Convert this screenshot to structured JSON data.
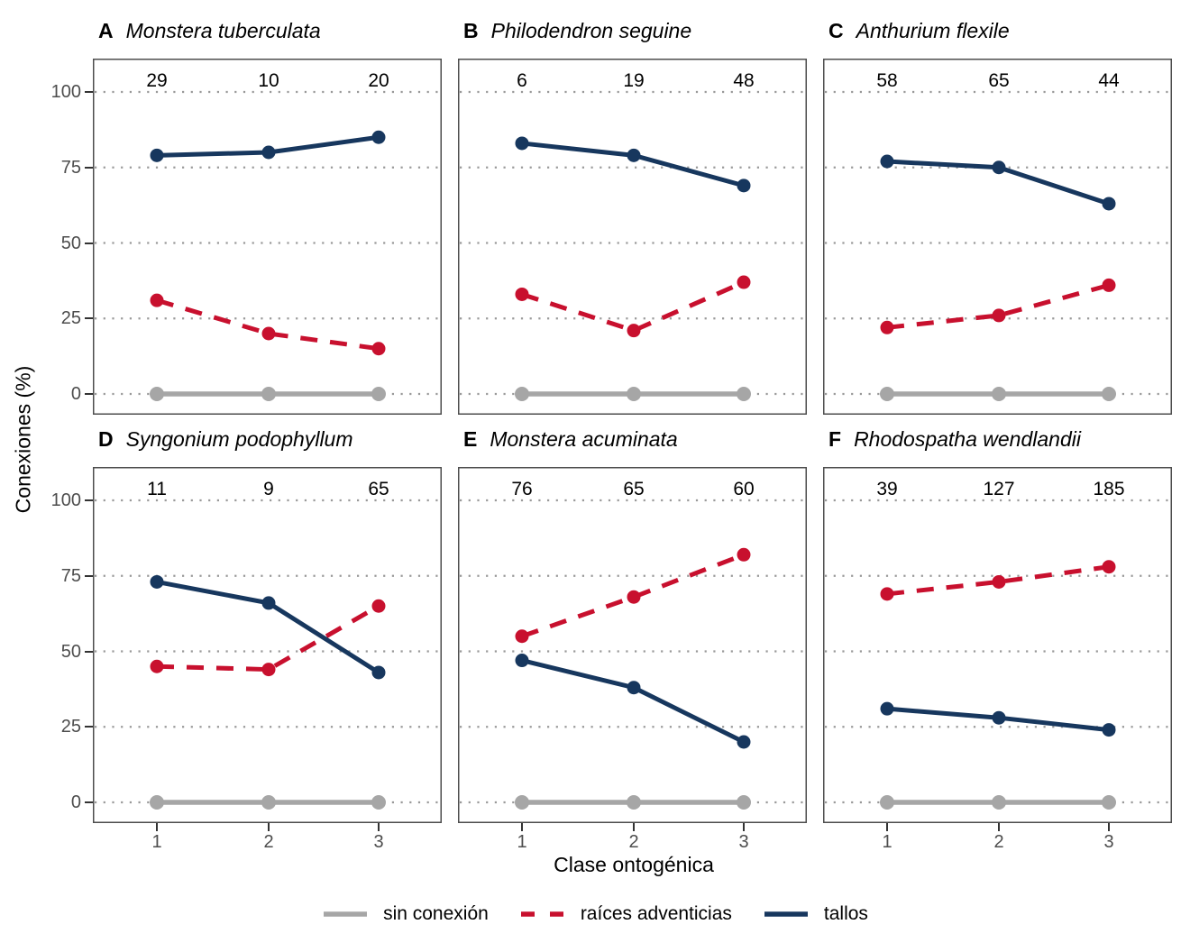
{
  "figure": {
    "ylabel": "Conexiones (%)",
    "xlabel": "Clase ontogénica"
  },
  "axes": {
    "y_ticks": [
      0,
      25,
      50,
      75,
      100
    ],
    "x_ticks": [
      "1",
      "2",
      "3"
    ]
  },
  "legend": {
    "items": [
      {
        "series": "sin_conexion",
        "label": "sin conexión"
      },
      {
        "series": "raices",
        "label": "raíces adventicias"
      },
      {
        "series": "tallos",
        "label": "tallos"
      }
    ]
  },
  "series_styles": {
    "sin_conexion": {
      "color": "#A6A6A6",
      "dash": "none",
      "width": 5.5,
      "r": 8
    },
    "raices": {
      "color": "#C8102E",
      "dash": "19 14",
      "width": 5,
      "r": 7.5
    },
    "tallos": {
      "color": "#17375E",
      "dash": "none",
      "width": 5,
      "r": 7.5
    }
  },
  "grid_color": "#999999",
  "border_color": "#4d4d4d",
  "chart_data": {
    "type": "line",
    "x": [
      1,
      2,
      3
    ],
    "xlabel": "Clase ontogénica",
    "ylabel": "Conexiones (%)",
    "ylim": [
      0,
      100
    ],
    "grid": "dotted horizontal at 0,25,50,75,100",
    "legend_position": "bottom",
    "panels": [
      {
        "letter": "A",
        "species": "Monstera tuberculata",
        "counts": [
          29,
          10,
          20
        ],
        "series": {
          "sin_conexion": [
            0,
            0,
            0
          ],
          "raices": [
            31,
            20,
            15
          ],
          "tallos": [
            79,
            80,
            85
          ]
        }
      },
      {
        "letter": "B",
        "species": "Philodendron seguine",
        "counts": [
          6,
          19,
          48
        ],
        "series": {
          "sin_conexion": [
            0,
            0,
            0
          ],
          "raices": [
            33,
            21,
            37
          ],
          "tallos": [
            83,
            79,
            69
          ]
        }
      },
      {
        "letter": "C",
        "species": "Anthurium flexile",
        "counts": [
          58,
          65,
          44
        ],
        "series": {
          "sin_conexion": [
            0,
            0,
            0
          ],
          "raices": [
            22,
            26,
            36
          ],
          "tallos": [
            77,
            75,
            63
          ]
        }
      },
      {
        "letter": "D",
        "species": "Syngonium podophyllum",
        "counts": [
          11,
          9,
          65
        ],
        "series": {
          "sin_conexion": [
            0,
            0,
            0
          ],
          "raices": [
            45,
            44,
            65
          ],
          "tallos": [
            73,
            66,
            43
          ]
        }
      },
      {
        "letter": "E",
        "species": "Monstera acuminata",
        "counts": [
          76,
          65,
          60
        ],
        "series": {
          "sin_conexion": [
            0,
            0,
            0
          ],
          "raices": [
            55,
            68,
            82
          ],
          "tallos": [
            47,
            38,
            20
          ]
        }
      },
      {
        "letter": "F",
        "species": "Rhodospatha wendlandii",
        "counts": [
          39,
          127,
          185
        ],
        "series": {
          "sin_conexion": [
            0,
            0,
            0
          ],
          "raices": [
            69,
            73,
            78
          ],
          "tallos": [
            31,
            28,
            24
          ]
        }
      }
    ]
  }
}
